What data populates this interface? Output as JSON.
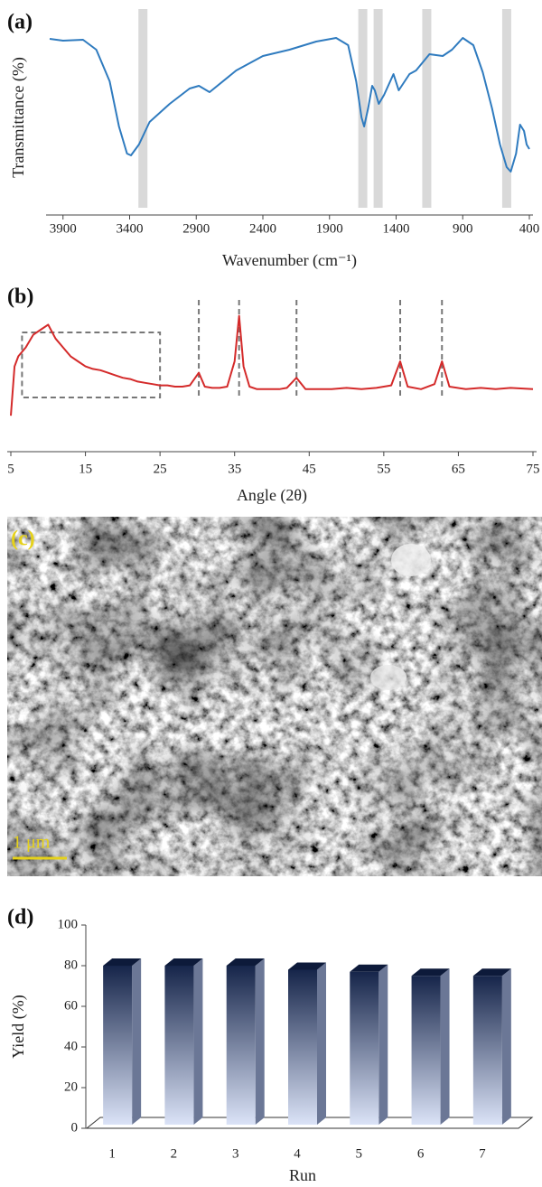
{
  "chart_data": [
    {
      "type": "line",
      "panel_label": "(a)",
      "x_label": "Wavenumber (cm⁻¹)",
      "y_label": "Transmittance (%)",
      "color": "#2f7bbf",
      "band_color": "#d9d9d9",
      "xlim": [
        4000,
        400
      ],
      "xticks": [
        3900,
        3400,
        2900,
        2400,
        1900,
        1400,
        900,
        400
      ],
      "ylim": [
        0,
        100
      ],
      "bands": [
        3300,
        1650,
        1535,
        1170,
        570
      ],
      "x": [
        4000,
        3900,
        3750,
        3650,
        3550,
        3480,
        3420,
        3390,
        3330,
        3250,
        3100,
        2950,
        2880,
        2800,
        2600,
        2400,
        2200,
        2000,
        1850,
        1760,
        1700,
        1660,
        1640,
        1610,
        1580,
        1560,
        1530,
        1490,
        1420,
        1380,
        1300,
        1250,
        1150,
        1050,
        980,
        900,
        820,
        750,
        680,
        620,
        570,
        540,
        500,
        470,
        440,
        420,
        400
      ],
      "values": [
        93.5,
        92.5,
        93,
        87.5,
        70,
        45,
        30,
        29,
        35,
        47.5,
        57.5,
        66,
        67.5,
        64,
        76,
        84,
        87.5,
        92,
        94,
        90,
        70,
        50,
        45,
        55,
        67.5,
        65,
        57.5,
        62.5,
        74,
        65,
        74,
        76,
        85,
        84,
        87.5,
        94,
        90,
        75,
        55,
        35,
        22.5,
        20,
        30,
        46,
        42.5,
        35,
        32.5
      ]
    },
    {
      "type": "line",
      "panel_label": "(b)",
      "x_label": "Angle (2θ)",
      "color": "#d42a2a",
      "xlim": [
        5,
        75
      ],
      "xticks": [
        5,
        15,
        25,
        35,
        45,
        55,
        65,
        75
      ],
      "ylim": [
        0,
        100
      ],
      "reference_lines": [
        30.2,
        35.6,
        43.3,
        57.2,
        62.8
      ],
      "box_x": [
        6.5,
        25
      ],
      "x": [
        5,
        5.5,
        6,
        7,
        8,
        9,
        10,
        11,
        12,
        13,
        14,
        15,
        16,
        17,
        18,
        19,
        20,
        21,
        22,
        23,
        24,
        25,
        26,
        27,
        28,
        29,
        30.2,
        31,
        32,
        33,
        34,
        35,
        35.6,
        36.2,
        37,
        38,
        39,
        40,
        41,
        42,
        43.3,
        44.5,
        46,
        48,
        50,
        52,
        54,
        56,
        57.2,
        58.2,
        60,
        61.8,
        62.8,
        63.8,
        66,
        68,
        70,
        72,
        75
      ],
      "values": [
        7,
        46,
        54,
        61,
        71,
        75,
        79,
        68,
        61,
        54,
        50,
        46,
        44,
        43,
        41,
        39,
        37,
        36,
        34,
        33,
        32,
        31,
        31,
        30,
        30,
        31,
        41,
        30,
        29,
        29,
        30,
        50,
        86,
        46,
        30,
        28,
        28,
        28,
        28,
        29,
        37,
        28,
        28,
        28,
        29,
        28,
        29,
        31,
        50,
        30,
        28,
        32,
        50,
        30,
        28,
        29,
        28,
        29,
        28
      ]
    },
    {
      "type": "bar3d",
      "panel_label": "(d)",
      "x_label": "Run",
      "y_label": "Yield (%)",
      "categories": [
        "1",
        "2",
        "3",
        "4",
        "5",
        "6",
        "7"
      ],
      "values": [
        80,
        80,
        80,
        78,
        77,
        75,
        75
      ],
      "color_top": "#16254a",
      "color_bottom": "#dbe3f7",
      "ylim": [
        0,
        100
      ],
      "yticks": [
        0,
        20,
        40,
        60,
        80,
        100
      ]
    }
  ],
  "image": {
    "label": "(c)",
    "scale_bar": "1 μm"
  }
}
